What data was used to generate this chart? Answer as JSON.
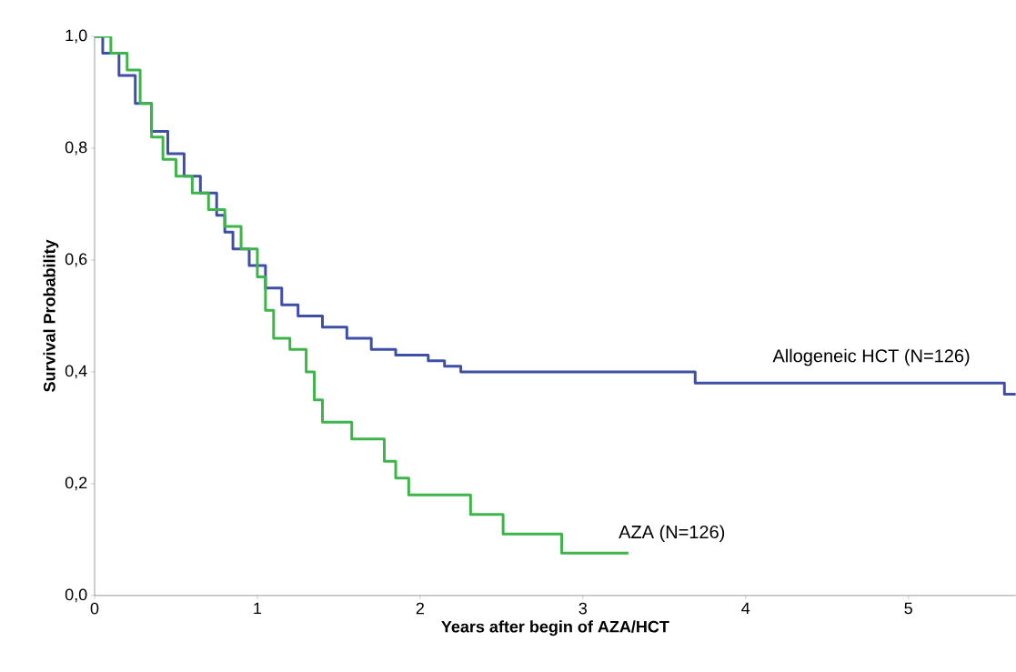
{
  "chart_data": {
    "type": "step",
    "xlabel": "Years after begin of AZA/HCT",
    "ylabel": "Survival Probability",
    "xlim": [
      0,
      5.66
    ],
    "ylim": [
      0,
      1.0
    ],
    "xticks": [
      0,
      1,
      2,
      3,
      4,
      5
    ],
    "yticks": [
      {
        "value": 0,
        "label": "0,0"
      },
      {
        "value": 0.2,
        "label": "0,2"
      },
      {
        "value": 0.4,
        "label": "0,4"
      },
      {
        "value": 0.6,
        "label": "0,6"
      },
      {
        "value": 0.8,
        "label": "0,8"
      },
      {
        "value": 1.0,
        "label": "1,0"
      }
    ],
    "grid": false,
    "series": [
      {
        "name": "Allogeneic HCT (N=126)",
        "color": "#3e4fa8",
        "x": [
          0,
          0.05,
          0.15,
          0.25,
          0.35,
          0.45,
          0.55,
          0.65,
          0.75,
          0.8,
          0.85,
          0.95,
          1.05,
          1.15,
          1.25,
          1.4,
          1.55,
          1.7,
          1.85,
          2.05,
          2.15,
          2.25,
          3.69,
          5.59,
          5.66
        ],
        "values": [
          1.0,
          0.97,
          0.93,
          0.88,
          0.83,
          0.79,
          0.75,
          0.72,
          0.68,
          0.65,
          0.62,
          0.59,
          0.55,
          0.52,
          0.5,
          0.48,
          0.46,
          0.44,
          0.43,
          0.42,
          0.41,
          0.4,
          0.38,
          0.36,
          0.36
        ]
      },
      {
        "name": "AZA (N=126)",
        "color": "#3db54a",
        "x": [
          0,
          0.1,
          0.2,
          0.28,
          0.35,
          0.42,
          0.5,
          0.6,
          0.7,
          0.8,
          0.9,
          1.0,
          1.05,
          1.1,
          1.2,
          1.3,
          1.35,
          1.4,
          1.58,
          1.78,
          1.85,
          1.93,
          2.31,
          2.51,
          2.87,
          3.28
        ],
        "values": [
          1.0,
          0.97,
          0.94,
          0.88,
          0.82,
          0.78,
          0.75,
          0.72,
          0.69,
          0.66,
          0.62,
          0.57,
          0.51,
          0.46,
          0.44,
          0.4,
          0.35,
          0.31,
          0.28,
          0.24,
          0.21,
          0.18,
          0.145,
          0.11,
          0.076,
          0.076
        ]
      }
    ]
  }
}
